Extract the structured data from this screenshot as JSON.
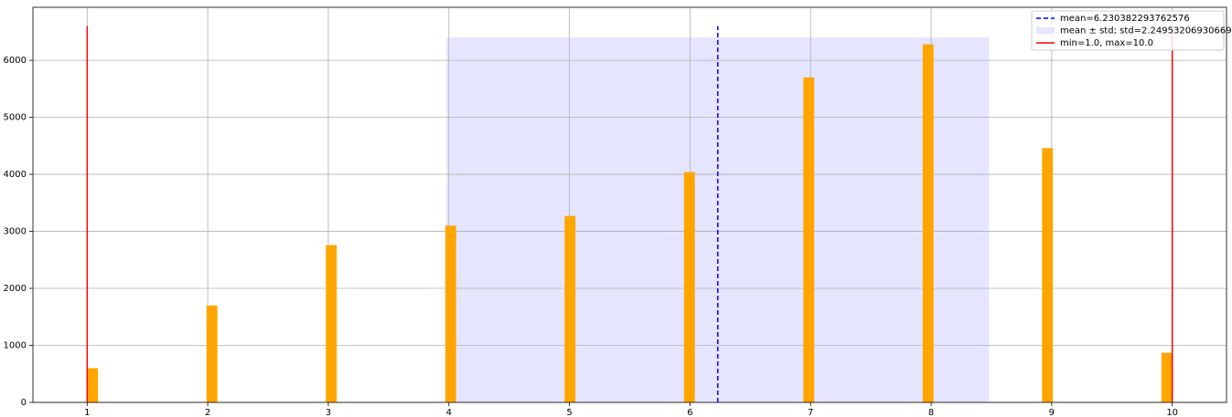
{
  "chart_data": {
    "type": "histogram",
    "bins": [
      1,
      1.09,
      1.18,
      1.27,
      1.36,
      1.45,
      1.54,
      1.63,
      1.72,
      1.81,
      1.9,
      1.99,
      2.08,
      2.17,
      2.26,
      2.35,
      2.44,
      2.53,
      2.62,
      2.71,
      2.8,
      2.89,
      2.98,
      3.07,
      3.16,
      3.25,
      3.34,
      3.43,
      3.52,
      3.61,
      3.7,
      3.79,
      3.88,
      3.97,
      4.06,
      4.15,
      4.24,
      4.33,
      4.42,
      4.51,
      4.6,
      4.69,
      4.78,
      4.87,
      4.96,
      5.05,
      5.14,
      5.23,
      5.32,
      5.41,
      5.5,
      5.59,
      5.68,
      5.77,
      5.86,
      5.95,
      6.04,
      6.13,
      6.22,
      6.31,
      6.4,
      6.49,
      6.58,
      6.67,
      6.76,
      6.85,
      6.94,
      7.03,
      7.12,
      7.21,
      7.3,
      7.39,
      7.48,
      7.57,
      7.66,
      7.75,
      7.84,
      7.93,
      8.02,
      8.11,
      8.2,
      8.29,
      8.38,
      8.47,
      8.56,
      8.65,
      8.74,
      8.83,
      8.92,
      9.01,
      9.1,
      9.19,
      9.28,
      9.37,
      9.46,
      9.55,
      9.64,
      9.73,
      9.82,
      9.91,
      10
    ],
    "values": [
      600,
      0,
      0,
      0,
      0,
      0,
      0,
      0,
      0,
      0,
      0,
      1700,
      0,
      0,
      0,
      0,
      0,
      0,
      0,
      0,
      0,
      0,
      2760,
      0,
      0,
      0,
      0,
      0,
      0,
      0,
      0,
      0,
      0,
      3100,
      0,
      0,
      0,
      0,
      0,
      0,
      0,
      0,
      0,
      0,
      3270,
      0,
      0,
      0,
      0,
      0,
      0,
      0,
      0,
      0,
      0,
      4040,
      0,
      0,
      0,
      0,
      0,
      0,
      0,
      0,
      0,
      0,
      5700,
      0,
      0,
      0,
      0,
      0,
      0,
      0,
      0,
      0,
      0,
      6280,
      0,
      0,
      0,
      0,
      0,
      0,
      0,
      0,
      0,
      0,
      4460,
      0,
      0,
      0,
      0,
      0,
      0,
      0,
      0,
      0,
      0,
      870
    ],
    "color": "#ffa500",
    "mean": 6.230382293762576,
    "std": 2.2495320693066927,
    "min": 1.0,
    "max": 10.0,
    "vline_ymax": 6600,
    "span_ymax": 6400,
    "mean_color": "#0000ff",
    "span_color": "#e5e5ff",
    "minmax_color": "#ff0000",
    "legend": [
      "mean=6.230382293762576",
      "mean ± std; std=2.2495320693066927",
      "min=1.0, max=10.0"
    ],
    "legend_position": "upper right",
    "xlim": [
      0.55,
      10.45
    ],
    "ylim": [
      0,
      6930
    ],
    "xticks": [
      1,
      2,
      3,
      4,
      5,
      6,
      7,
      8,
      9,
      10
    ],
    "yticks": [
      0,
      1000,
      2000,
      3000,
      4000,
      5000,
      6000
    ],
    "grid": true
  }
}
